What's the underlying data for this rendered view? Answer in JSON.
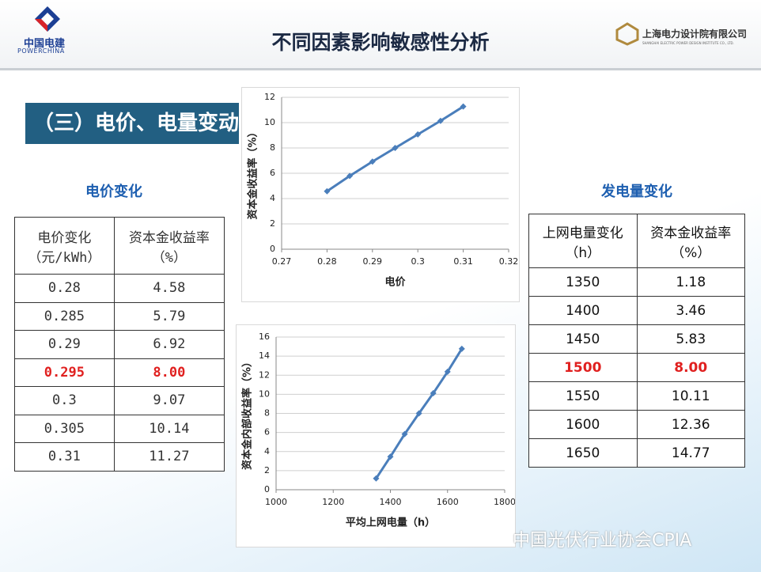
{
  "header": {
    "logo": "中国电建",
    "logo_en": "POWERCHINA",
    "title": "不同因素影响敏感性分析",
    "company": "上海电力设计院有限公司",
    "company_en": "SHANGHAI ELECTRIC POWER DESIGN INSTITUTE CO., LTD."
  },
  "section": "（三）电价、电量变动",
  "tables": [
    {
      "title": "电价变化",
      "headers": [
        [
          "电价变化",
          "（元/kWh）"
        ],
        [
          "资本金收益率",
          "（%）"
        ]
      ],
      "rows": [
        [
          "0.28",
          "4.58"
        ],
        [
          "0.285",
          "5.79"
        ],
        [
          "0.29",
          "6.92"
        ],
        [
          "0.295",
          "8.00"
        ],
        [
          "0.3",
          "9.07"
        ],
        [
          "0.305",
          "10.14"
        ],
        [
          "0.31",
          "11.27"
        ]
      ],
      "highlight_row": 3,
      "highlight_color": "#e0201f"
    },
    {
      "title": "发电量变化",
      "headers": [
        [
          "上网电量变化",
          "（h）"
        ],
        [
          "资本金收益率",
          "（%）"
        ]
      ],
      "rows": [
        [
          "1350",
          "1.18"
        ],
        [
          "1400",
          "3.46"
        ],
        [
          "1450",
          "5.83"
        ],
        [
          "1500",
          "8.00"
        ],
        [
          "1550",
          "10.11"
        ],
        [
          "1600",
          "12.36"
        ],
        [
          "1650",
          "14.77"
        ]
      ],
      "highlight_row": 3,
      "highlight_color": "#e0201f"
    }
  ],
  "chart_data": [
    {
      "type": "line",
      "x_label": "电价",
      "y_label": "资本金收益率（%）",
      "x": [
        0.28,
        0.285,
        0.29,
        0.295,
        0.3,
        0.305,
        0.31
      ],
      "series": [
        {
          "color": "#4a7ebb",
          "values": [
            4.58,
            5.79,
            6.92,
            8.0,
            9.07,
            10.14,
            11.27
          ]
        }
      ],
      "xlim": [
        0.27,
        0.32
      ],
      "xticks": [
        0.27,
        0.28,
        0.29,
        0.3,
        0.31,
        0.32
      ],
      "ylim": [
        0,
        12
      ],
      "yticks": [
        0,
        2,
        4,
        6,
        8,
        10,
        12
      ],
      "grid": true
    },
    {
      "type": "line",
      "x_label": "平均上网电量（h）",
      "y_label": "资本金内部收益率（%）",
      "x": [
        1350,
        1400,
        1450,
        1500,
        1550,
        1600,
        1650
      ],
      "series": [
        {
          "color": "#4a7ebb",
          "values": [
            1.18,
            3.46,
            5.83,
            8.0,
            10.11,
            12.36,
            14.77
          ]
        }
      ],
      "xlim": [
        1000,
        1800
      ],
      "xticks": [
        1000,
        1200,
        1400,
        1600,
        1800
      ],
      "ylim": [
        0,
        16
      ],
      "yticks": [
        0,
        2,
        4,
        6,
        8,
        10,
        12,
        14,
        16
      ],
      "grid": true
    }
  ],
  "watermark": "中国光伏行业协会CPIA"
}
